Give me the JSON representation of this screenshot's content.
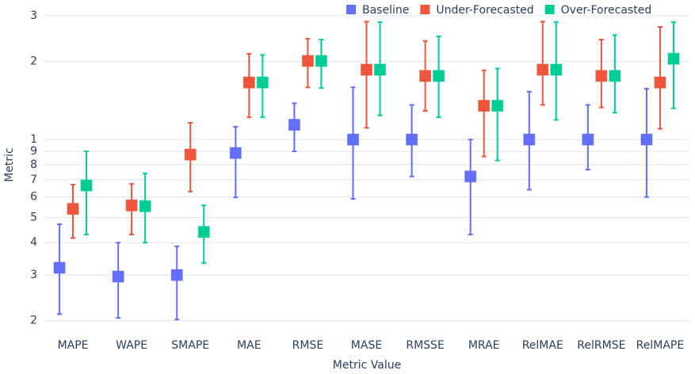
{
  "chart_data": {
    "type": "errorbar",
    "x_label": "Metric Value",
    "y_label": "Metric",
    "log_y": true,
    "grid": true,
    "legend": "top-right",
    "categories": [
      "MAPE",
      "WAPE",
      "SMAPE",
      "MAE",
      "RMSE",
      "MASE",
      "RMSSE",
      "MRAE",
      "RelMAE",
      "RelRMSE",
      "RelMAPE"
    ],
    "ylim": [
      0.186,
      3.22
    ],
    "yticks": [
      {
        "value": 0.2,
        "label": "2"
      },
      {
        "value": 0.3,
        "label": "3"
      },
      {
        "value": 0.4,
        "label": "4"
      },
      {
        "value": 0.5,
        "label": "5"
      },
      {
        "value": 0.6,
        "label": "6"
      },
      {
        "value": 0.7,
        "label": "7"
      },
      {
        "value": 0.8,
        "label": "8"
      },
      {
        "value": 0.9,
        "label": "9"
      },
      1,
      2,
      3
    ],
    "series": [
      {
        "name": "Baseline",
        "color": "#636efa",
        "values": [
          0.32,
          0.296,
          0.3,
          0.887,
          1.14,
          1.0,
          1.0,
          0.72,
          1.0,
          1.0,
          1.0
        ],
        "lower": [
          0.212,
          0.205,
          0.202,
          0.598,
          0.9,
          0.59,
          0.72,
          0.43,
          0.64,
          0.765,
          0.6
        ],
        "upper": [
          0.471,
          0.4,
          0.387,
          1.12,
          1.38,
          1.59,
          1.36,
          1.0,
          1.53,
          1.36,
          1.57
        ]
      },
      {
        "name": "Under-Forecasted",
        "color": "#ef553b",
        "values": [
          0.54,
          0.557,
          0.875,
          1.66,
          2.01,
          1.86,
          1.76,
          1.35,
          1.86,
          1.76,
          1.66
        ],
        "lower": [
          0.417,
          0.43,
          0.63,
          1.22,
          1.59,
          1.11,
          1.29,
          0.86,
          1.36,
          1.33,
          1.1
        ],
        "upper": [
          0.67,
          0.674,
          1.16,
          2.14,
          2.45,
          2.85,
          2.4,
          1.85,
          2.85,
          2.43,
          2.72
        ]
      },
      {
        "name": "Over-Forecasted",
        "color": "#00cc96",
        "values": [
          0.665,
          0.553,
          0.44,
          1.66,
          2.01,
          1.86,
          1.76,
          1.35,
          1.86,
          1.76,
          2.05
        ],
        "lower": [
          0.43,
          0.4,
          0.334,
          1.22,
          1.58,
          1.24,
          1.22,
          0.83,
          1.19,
          1.27,
          1.32
        ],
        "upper": [
          0.9,
          0.74,
          0.557,
          2.12,
          2.43,
          2.84,
          2.5,
          1.88,
          2.84,
          2.53,
          2.84
        ]
      }
    ]
  }
}
